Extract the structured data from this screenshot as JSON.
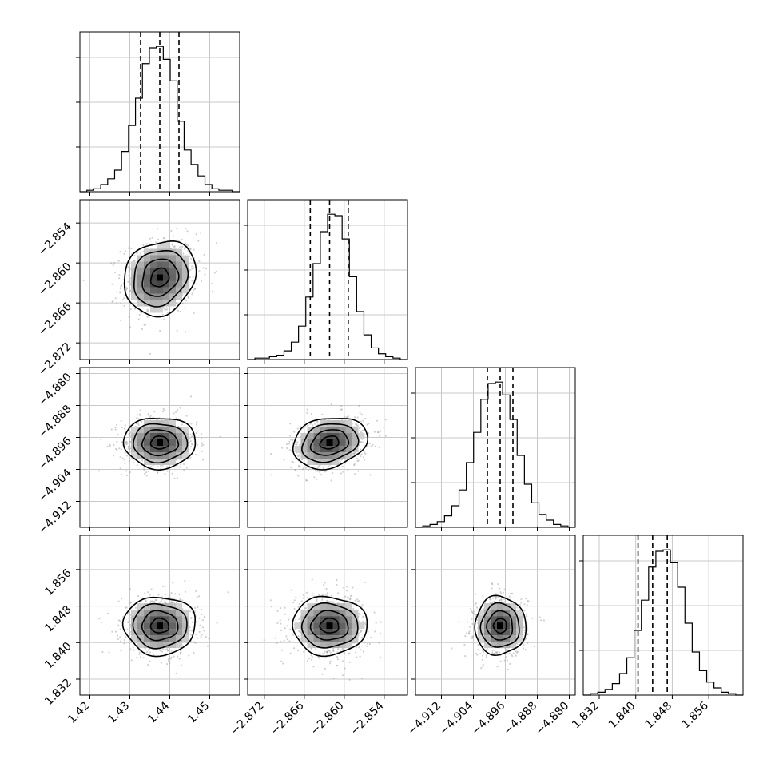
{
  "chart_data": {
    "type": "corner",
    "params": [
      {
        "range": [
          1.4175,
          1.4575
        ],
        "ticks": [
          1.42,
          1.43,
          1.44,
          1.45
        ],
        "tick_labels": [
          "1.42",
          "1.43",
          "1.44",
          "1.45"
        ],
        "quantiles": [
          1.4327,
          1.4375,
          1.4423
        ],
        "mean": 1.4375,
        "sd": 0.0045
      },
      {
        "range": [
          -2.8745,
          -2.8505
        ],
        "ticks": [
          -2.872,
          -2.866,
          -2.86,
          -2.854
        ],
        "tick_labels": [
          "−2.872",
          "−2.866",
          "−2.860",
          "−2.854"
        ],
        "quantiles": [
          -2.8651,
          -2.8622,
          -2.8594
        ],
        "mean": -2.8622,
        "sd": 0.0028
      },
      {
        "range": [
          -4.9185,
          -4.8785
        ],
        "ticks": [
          -4.912,
          -4.904,
          -4.896,
          -4.888,
          -4.88
        ],
        "tick_labels": [
          "−4.912",
          "−4.904",
          "−4.896",
          "−4.888",
          "−4.880"
        ],
        "quantiles": [
          -4.9005,
          -4.8973,
          -4.8941
        ],
        "mean": -4.8973,
        "sd": 0.0032
      },
      {
        "range": [
          1.8285,
          1.8635
        ],
        "ticks": [
          1.832,
          1.84,
          1.848,
          1.856
        ],
        "tick_labels": [
          "1.832",
          "1.840",
          "1.848",
          "1.856"
        ],
        "quantiles": [
          1.8405,
          1.8437,
          1.8469
        ],
        "mean": 1.8437,
        "sd": 0.0032
      }
    ],
    "histograms": [
      [
        0,
        1,
        2,
        5,
        9,
        15,
        28,
        46,
        65,
        89,
        100,
        101,
        92,
        77,
        49,
        29,
        19,
        11,
        5,
        2,
        1,
        1,
        0
      ],
      [
        0,
        1,
        1,
        2,
        3,
        6,
        12,
        23,
        43,
        66,
        88,
        100,
        99,
        83,
        57,
        33,
        17,
        8,
        4,
        2,
        1,
        0
      ],
      [
        0,
        1,
        2,
        4,
        8,
        15,
        26,
        45,
        66,
        89,
        100,
        101,
        92,
        75,
        50,
        30,
        17,
        9,
        5,
        2,
        1,
        0
      ],
      [
        0,
        1,
        2,
        4,
        8,
        15,
        26,
        45,
        66,
        89,
        100,
        101,
        92,
        75,
        50,
        30,
        17,
        9,
        5,
        2,
        1,
        0
      ]
    ],
    "grid": true,
    "quantile_lines": "dashed"
  }
}
